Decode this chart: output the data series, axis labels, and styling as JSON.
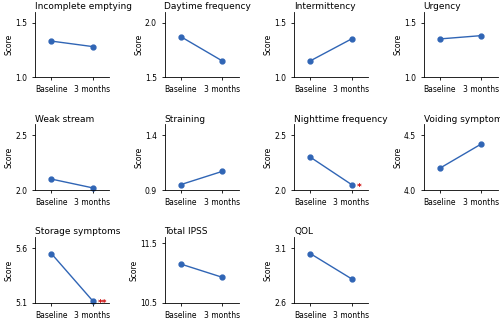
{
  "subplots": [
    {
      "title": "Incomplete emptying",
      "baseline": 1.33,
      "three_months": 1.28,
      "ylim": [
        1.0,
        1.6
      ],
      "yticks": [
        1.0,
        1.5
      ],
      "star": null
    },
    {
      "title": "Daytime frequency",
      "baseline": 1.87,
      "three_months": 1.65,
      "ylim": [
        1.5,
        2.1
      ],
      "yticks": [
        1.5,
        2.0
      ],
      "star": null
    },
    {
      "title": "Intermittency",
      "baseline": 1.15,
      "three_months": 1.35,
      "ylim": [
        1.0,
        1.6
      ],
      "yticks": [
        1.0,
        1.5
      ],
      "star": null
    },
    {
      "title": "Urgency",
      "baseline": 1.35,
      "three_months": 1.38,
      "ylim": [
        1.0,
        1.6
      ],
      "yticks": [
        1.0,
        1.5
      ],
      "star": null
    },
    {
      "title": "Weak stream",
      "baseline": 2.1,
      "three_months": 2.02,
      "ylim": [
        2.0,
        2.6
      ],
      "yticks": [
        2.0,
        2.5
      ],
      "star": null
    },
    {
      "title": "Straining",
      "baseline": 0.95,
      "three_months": 1.07,
      "ylim": [
        0.9,
        1.5
      ],
      "yticks": [
        0.9,
        1.4
      ],
      "star": null
    },
    {
      "title": "Nighttime frequency",
      "baseline": 2.3,
      "three_months": 2.05,
      "ylim": [
        2.0,
        2.6
      ],
      "yticks": [
        2.0,
        2.5
      ],
      "star": "*"
    },
    {
      "title": "Voiding symptoms",
      "baseline": 4.2,
      "three_months": 4.42,
      "ylim": [
        4.0,
        4.6
      ],
      "yticks": [
        4.0,
        4.5
      ],
      "star": null
    },
    {
      "title": "Storage symptoms",
      "baseline": 5.55,
      "three_months": 5.12,
      "ylim": [
        5.1,
        5.7
      ],
      "yticks": [
        5.1,
        5.6
      ],
      "star": "**"
    },
    {
      "title": "Total IPSS",
      "baseline": 11.15,
      "three_months": 10.93,
      "ylim": [
        10.5,
        11.6
      ],
      "yticks": [
        10.5,
        11.5
      ],
      "star": null
    },
    {
      "title": "QOL",
      "baseline": 3.05,
      "three_months": 2.82,
      "ylim": [
        2.6,
        3.2
      ],
      "yticks": [
        2.6,
        3.1
      ],
      "star": null
    }
  ],
  "line_color": "#3065b5",
  "marker": "o",
  "marker_size": 3.5,
  "star_color": "#cc0000",
  "xtick_labels": [
    "Baseline",
    "3 months"
  ],
  "ylabel": "Score",
  "title_fontsize": 6.5,
  "label_fontsize": 5.5,
  "tick_fontsize": 5.5,
  "background_color": "#ffffff"
}
